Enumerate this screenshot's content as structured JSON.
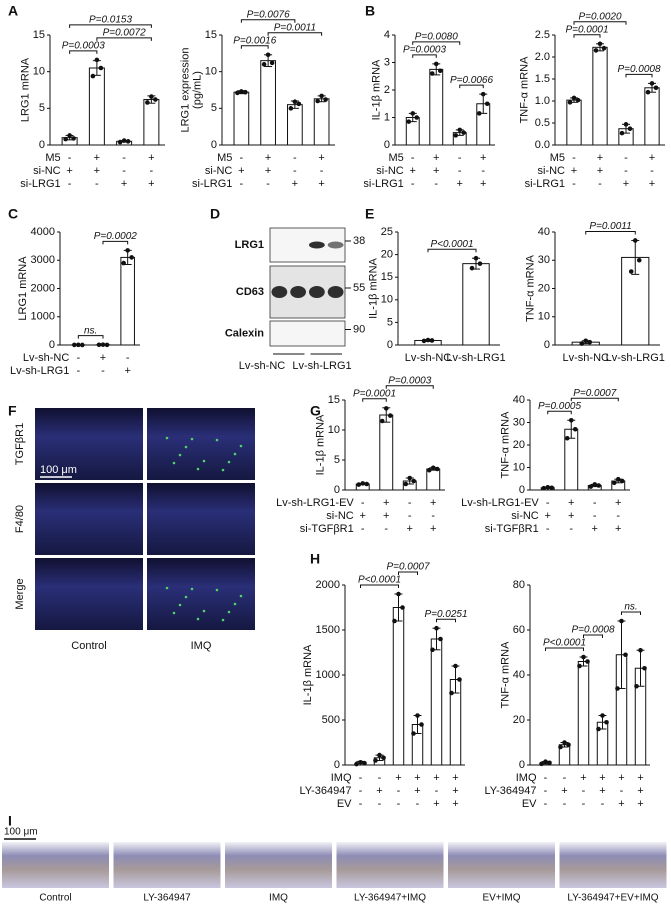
{
  "panels": [
    "A",
    "B",
    "C",
    "D",
    "E",
    "F",
    "G",
    "H",
    "I"
  ],
  "chart_data": [
    {
      "type": "bar",
      "ylabel": "LRG1 mRNA",
      "ylim": [
        0,
        15
      ],
      "yticks": [
        0,
        5,
        10,
        15
      ],
      "values": [
        1,
        10.5,
        0.5,
        6.2
      ],
      "errors": [
        0.3,
        1,
        0.1,
        0.5
      ],
      "points": [
        [
          0.8,
          1.3,
          0.9
        ],
        [
          9.4,
          11.6,
          10.5
        ],
        [
          0.4,
          0.6,
          0.5
        ],
        [
          5.8,
          6.6,
          6.2
        ]
      ],
      "brackets": [
        {
          "between": [
            0,
            1
          ],
          "label": "P=0.0003"
        },
        {
          "between": [
            1,
            3
          ],
          "label": "P=0.0072"
        },
        {
          "between": [
            0,
            3
          ],
          "label": "P=0.0153"
        }
      ],
      "conditions": [
        {
          "label": "M5",
          "signs": [
            "-",
            "+",
            "-",
            "+"
          ]
        },
        {
          "label": "si-NC",
          "signs": [
            "+",
            "+",
            "-",
            "-"
          ]
        },
        {
          "label": "si-LRG1",
          "signs": [
            "-",
            "-",
            "+",
            "+"
          ]
        }
      ]
    },
    {
      "type": "bar",
      "ylabel": [
        "LRG1 expression",
        "(pg/mL)"
      ],
      "ylim": [
        0,
        15
      ],
      "yticks": [
        0,
        5,
        10,
        15
      ],
      "values": [
        7.2,
        11.5,
        5.5,
        6.3
      ],
      "errors": [
        0.2,
        0.8,
        0.5,
        0.4
      ],
      "points": [
        [
          7.1,
          7.3,
          7.2
        ],
        [
          11.0,
          12.3,
          11.2
        ],
        [
          5.0,
          5.9,
          5.6
        ],
        [
          6.0,
          6.7,
          6.2
        ]
      ],
      "brackets": [
        {
          "between": [
            0,
            1
          ],
          "label": "P=0.0016"
        },
        {
          "between": [
            1,
            3
          ],
          "label": "P=0.0011"
        },
        {
          "between": [
            0,
            2
          ],
          "label": "P=0.0076"
        }
      ],
      "conditions": [
        {
          "label": "M5",
          "signs": [
            "-",
            "+",
            "-",
            "+"
          ]
        },
        {
          "label": "si-NC",
          "signs": [
            "+",
            "+",
            "-",
            "-"
          ]
        },
        {
          "label": "si-LRG1",
          "signs": [
            "-",
            "-",
            "+",
            "+"
          ]
        }
      ]
    },
    {
      "type": "bar",
      "ylabel": "IL-1β mRNA",
      "ylim": [
        0,
        4
      ],
      "yticks": [
        0,
        1,
        2,
        3,
        4
      ],
      "values": [
        1,
        2.75,
        0.45,
        1.5
      ],
      "errors": [
        0.15,
        0.2,
        0.1,
        0.35
      ],
      "points": [
        [
          0.85,
          1.15,
          1.0
        ],
        [
          2.6,
          2.95,
          2.7
        ],
        [
          0.35,
          0.55,
          0.45
        ],
        [
          1.15,
          1.85,
          1.5
        ]
      ],
      "brackets": [
        {
          "between": [
            0,
            1
          ],
          "label": "P=0.0003"
        },
        {
          "between": [
            2,
            3
          ],
          "label": "P=0.0066"
        },
        {
          "between": [
            0,
            2
          ],
          "label": "P=0.0080"
        }
      ],
      "conditions": [
        {
          "label": "M5",
          "signs": [
            "-",
            "+",
            "-",
            "+"
          ]
        },
        {
          "label": "si-NC",
          "signs": [
            "+",
            "+",
            "-",
            "-"
          ]
        },
        {
          "label": "si-LRG1",
          "signs": [
            "-",
            "-",
            "+",
            "+"
          ]
        }
      ]
    },
    {
      "type": "bar",
      "ylabel": "TNF-α mRNA",
      "ylim": [
        0,
        2.5
      ],
      "yticks": [
        {
          "value": 0,
          "label": "0.0"
        },
        0.5,
        {
          "value": 1,
          "label": "1.0"
        },
        1.5,
        {
          "value": 2,
          "label": "2.0"
        },
        2.5
      ],
      "values": [
        1.02,
        2.22,
        0.37,
        1.3
      ],
      "errors": [
        0.05,
        0.08,
        0.1,
        0.1
      ],
      "points": [
        [
          0.97,
          1.07,
          1.02
        ],
        [
          2.15,
          2.3,
          2.2
        ],
        [
          0.27,
          0.47,
          0.37
        ],
        [
          1.2,
          1.4,
          1.3
        ]
      ],
      "brackets": [
        {
          "between": [
            0,
            1
          ],
          "label": "P=0.0001"
        },
        {
          "between": [
            2,
            3
          ],
          "label": "P=0.0008"
        },
        {
          "between": [
            0,
            2
          ],
          "label": "P=0.0020"
        }
      ],
      "conditions": [
        {
          "label": "M5",
          "signs": [
            "-",
            "+",
            "-",
            "+"
          ]
        },
        {
          "label": "si-NC",
          "signs": [
            "+",
            "+",
            "-",
            "-"
          ]
        },
        {
          "label": "si-LRG1",
          "signs": [
            "-",
            "-",
            "+",
            "+"
          ]
        }
      ]
    },
    {
      "type": "bar",
      "ylabel": "LRG1 mRNA",
      "ylim": [
        0,
        4000
      ],
      "yticks": [
        0,
        1000,
        2000,
        3000,
        4000
      ],
      "values": [
        3,
        8,
        3100
      ],
      "errors": [
        3,
        5,
        250
      ],
      "points": [
        [
          3,
          6,
          1
        ],
        [
          8,
          12,
          4
        ],
        [
          2900,
          3350,
          3100
        ]
      ],
      "brackets": [
        {
          "between": [
            0,
            1
          ],
          "label": "ns."
        },
        {
          "between": [
            1,
            2
          ],
          "label": "P=0.0002"
        }
      ],
      "conditions": [
        {
          "label": "Lv-sh-NC",
          "signs": [
            "-",
            "+",
            "-"
          ]
        },
        {
          "label": "Lv-sh-LRG1",
          "signs": [
            "-",
            "-",
            "+"
          ]
        }
      ]
    },
    {
      "type": "bar",
      "ylabel": "IL-1β mRNA",
      "ylim": [
        0,
        25
      ],
      "yticks": [
        0,
        5,
        10,
        15,
        20,
        25
      ],
      "categories": [
        "Lv-sh-NC",
        "Lv-sh-LRG1"
      ],
      "values": [
        1,
        18
      ],
      "errors": [
        0.2,
        1.2
      ],
      "points": [
        [
          0.9,
          1.1,
          1.0
        ],
        [
          17,
          19.2,
          18
        ]
      ],
      "brackets": [
        {
          "between": [
            0,
            1
          ],
          "label": "P<0.0001"
        }
      ]
    },
    {
      "type": "bar",
      "ylabel": "TNF-α mRNA",
      "ylim": [
        0,
        40
      ],
      "yticks": [
        0,
        10,
        20,
        30,
        40
      ],
      "categories": [
        "Lv-sh-NC",
        "Lv-sh-LRG1"
      ],
      "values": [
        1,
        31
      ],
      "errors": [
        0.5,
        6
      ],
      "points": [
        [
          0.5,
          1.5,
          1.0
        ],
        [
          26,
          37,
          30
        ]
      ],
      "brackets": [
        {
          "between": [
            0,
            1
          ],
          "label": "P=0.0011"
        }
      ]
    },
    {
      "type": "bar",
      "ylabel": "IL-1β mRNA",
      "ylim": [
        0,
        15
      ],
      "yticks": [
        0,
        5,
        10,
        15
      ],
      "values": [
        1,
        12.5,
        1.5,
        3.5
      ],
      "errors": [
        0.1,
        1.2,
        0.5,
        0.2
      ],
      "points": [
        [
          0.9,
          1.1,
          1.0
        ],
        [
          11.5,
          13.6,
          12.4
        ],
        [
          1.0,
          2.0,
          1.5
        ],
        [
          3.3,
          3.7,
          3.5
        ]
      ],
      "brackets": [
        {
          "between": [
            0,
            1
          ],
          "label": "P=0.0001"
        },
        {
          "between": [
            1,
            3
          ],
          "label": "P=0.0003"
        }
      ],
      "conditions": [
        {
          "label": "Lv-sh-LRG1-EV",
          "signs": [
            "-",
            "+",
            "-",
            "+"
          ]
        },
        {
          "label": "si-NC",
          "signs": [
            "+",
            "+",
            "-",
            "-"
          ]
        },
        {
          "label": "si-TGFβR1",
          "signs": [
            "-",
            "-",
            "+",
            "+"
          ]
        }
      ]
    },
    {
      "type": "bar",
      "ylabel": "TNF-α mRNA",
      "ylim": [
        0,
        40
      ],
      "yticks": [
        0,
        10,
        20,
        30,
        40
      ],
      "values": [
        1,
        27,
        2,
        4
      ],
      "errors": [
        0.3,
        4,
        0.5,
        0.8
      ],
      "points": [
        [
          0.8,
          1.2,
          1.0
        ],
        [
          23,
          31,
          27
        ],
        [
          1.5,
          2.5,
          2.0
        ],
        [
          3.2,
          4.8,
          4.0
        ]
      ],
      "brackets": [
        {
          "between": [
            0,
            1
          ],
          "label": "P=0.0005"
        },
        {
          "between": [
            1,
            3
          ],
          "label": "P=0.0007"
        }
      ],
      "conditions": [
        {
          "label": "Lv-sh-LRG1-EV",
          "signs": [
            "-",
            "+",
            "-",
            "+"
          ]
        },
        {
          "label": "si-NC",
          "signs": [
            "+",
            "+",
            "-",
            "-"
          ]
        },
        {
          "label": "si-TGFβR1",
          "signs": [
            "-",
            "-",
            "+",
            "+"
          ]
        }
      ]
    },
    {
      "type": "bar",
      "ylabel": "IL-1β mRNA",
      "ylim": [
        0,
        2000
      ],
      "yticks": [
        0,
        500,
        1000,
        1500,
        2000
      ],
      "values": [
        20,
        80,
        1750,
        450,
        1400,
        950
      ],
      "errors": [
        20,
        30,
        150,
        100,
        120,
        150
      ],
      "points": [
        [
          10,
          30,
          20
        ],
        [
          50,
          110,
          80
        ],
        [
          1600,
          1900,
          1750
        ],
        [
          350,
          550,
          450
        ],
        [
          1280,
          1520,
          1400
        ],
        [
          800,
          1100,
          950
        ]
      ],
      "brackets": [
        {
          "between": [
            0,
            2
          ],
          "label": "P<0.0001"
        },
        {
          "between": [
            2,
            3
          ],
          "label": "P=0.0007"
        },
        {
          "between": [
            4,
            5
          ],
          "label": "P=0.0251"
        }
      ],
      "conditions": [
        {
          "label": "IMQ",
          "signs": [
            "-",
            "-",
            "+",
            "+",
            "+",
            "+"
          ]
        },
        {
          "label": "LY-364947",
          "signs": [
            "-",
            "+",
            "-",
            "+",
            "-",
            "+"
          ]
        },
        {
          "label": "EV",
          "signs": [
            "-",
            "-",
            "-",
            "-",
            "+",
            "+"
          ]
        }
      ]
    },
    {
      "type": "bar",
      "ylabel": "TNF-α mRNA",
      "ylim": [
        0,
        80
      ],
      "yticks": [
        0,
        20,
        40,
        60,
        80
      ],
      "values": [
        1,
        9,
        46,
        19,
        49,
        43
      ],
      "errors": [
        0.5,
        1,
        2,
        3,
        15,
        8
      ],
      "points": [
        [
          0.5,
          1.5,
          1.0
        ],
        [
          8,
          10,
          9
        ],
        [
          44,
          48,
          46
        ],
        [
          16,
          22,
          19
        ],
        [
          34,
          64,
          49
        ],
        [
          35,
          51,
          43
        ]
      ],
      "brackets": [
        {
          "between": [
            0,
            2
          ],
          "label": "P<0.0001"
        },
        {
          "between": [
            2,
            3
          ],
          "label": "P=0.0008"
        },
        {
          "between": [
            4,
            5
          ],
          "label": "ns."
        }
      ],
      "conditions": [
        {
          "label": "IMQ",
          "signs": [
            "-",
            "-",
            "+",
            "+",
            "+",
            "+"
          ]
        },
        {
          "label": "LY-364947",
          "signs": [
            "-",
            "+",
            "-",
            "+",
            "-",
            "+"
          ]
        },
        {
          "label": "EV",
          "signs": [
            "-",
            "-",
            "-",
            "-",
            "+",
            "+"
          ]
        }
      ]
    }
  ],
  "blot": {
    "rows": [
      {
        "label": "LRG1",
        "marker": "38"
      },
      {
        "label": "CD63",
        "marker": "55"
      },
      {
        "label": "Calexin",
        "marker": "90"
      }
    ],
    "groups": [
      "Lv-sh-NC",
      "Lv-sh-LRG1"
    ]
  },
  "staining": {
    "rows": [
      "TGFβR1",
      "F4/80",
      "Merge"
    ],
    "columns": [
      "Control",
      "IMQ"
    ],
    "scale_bar": "100 μm"
  },
  "histology": {
    "samples": [
      "Control",
      "LY-364947",
      "IMQ",
      "LY-364947+IMQ",
      "EV+IMQ",
      "LY-364947+EV+IMQ"
    ],
    "scale_bar": "100 μm"
  }
}
